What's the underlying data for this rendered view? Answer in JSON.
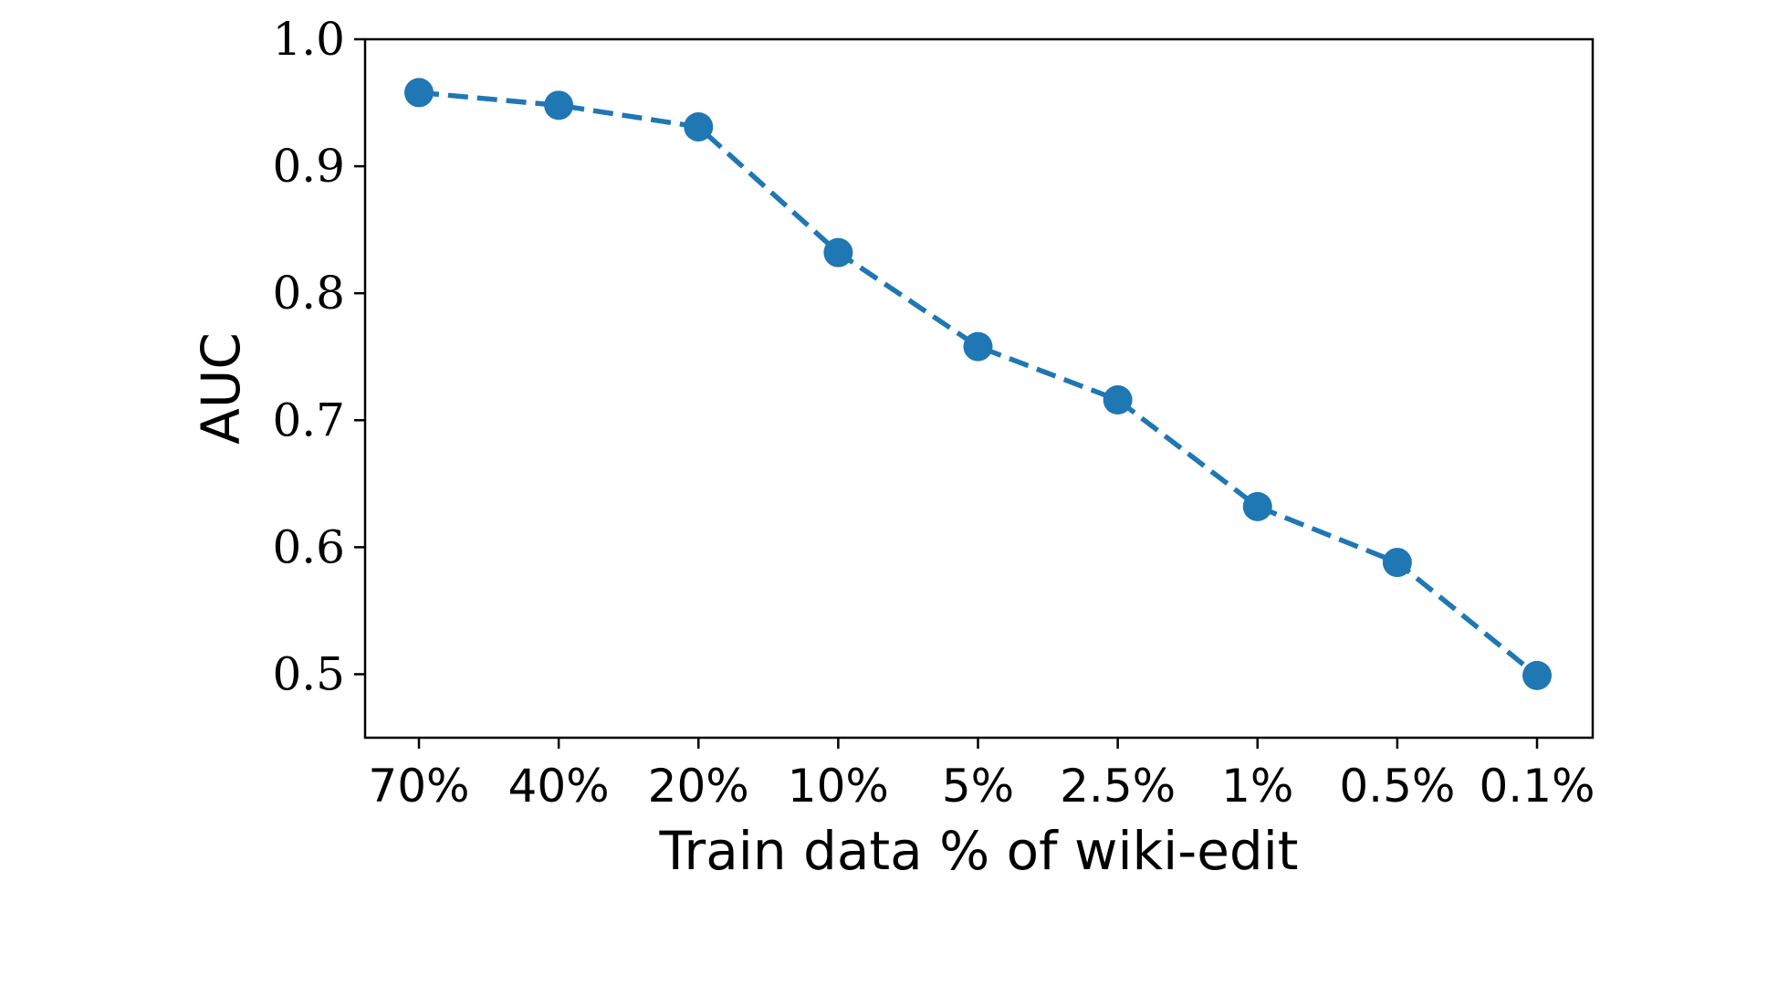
{
  "chart_data": {
    "type": "line",
    "title": "",
    "xlabel": "Train data % of wiki-edit",
    "ylabel": "AUC",
    "categories": [
      "70%",
      "40%",
      "20%",
      "10%",
      "5%",
      "2.5%",
      "1%",
      "0.5%",
      "0.1%"
    ],
    "series": [
      {
        "values": [
          0.958,
          0.948,
          0.931,
          0.832,
          0.758,
          0.716,
          0.632,
          0.588,
          0.499
        ],
        "color": "#1f77b4",
        "line_style": "dashed",
        "marker": "circle"
      }
    ],
    "ylim": [
      0.45,
      1.0
    ],
    "yticks": [
      0.5,
      0.6,
      0.7,
      0.8,
      0.9,
      1.0
    ],
    "ytick_labels": [
      "0.5",
      "0.6",
      "0.7",
      "0.8",
      "0.9",
      "1.0"
    ],
    "grid": false,
    "legend": "none"
  }
}
